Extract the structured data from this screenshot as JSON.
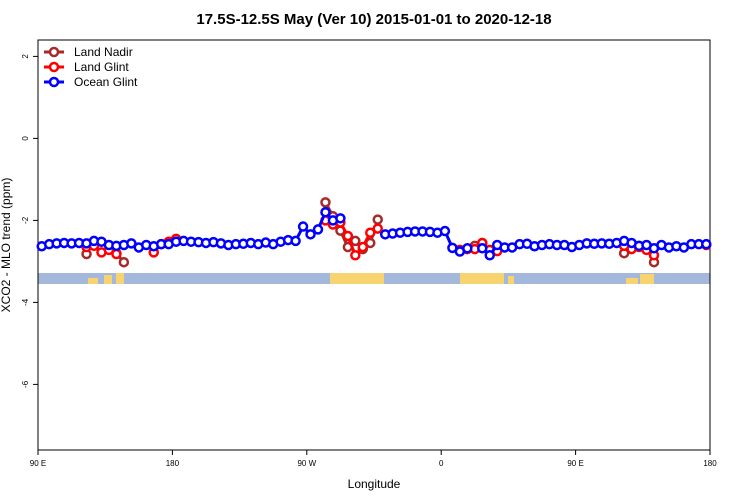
{
  "chart_data": {
    "type": "line",
    "title": "17.5S-12.5S May (Ver 10)   2015-01-01 to 2020-12-18",
    "x_label": "Longitude",
    "y_label": "XCO2 - MLO trend (ppm)",
    "xlim": [
      90,
      540
    ],
    "xticks": [
      {
        "value": 90,
        "label": "90 E"
      },
      180,
      {
        "value": 270,
        "label": "90 W"
      },
      {
        "value": 360,
        "label": "0"
      },
      {
        "value": 450,
        "label": "90 E"
      },
      {
        "value": 540,
        "label": "180"
      }
    ],
    "ylim": [
      -7.6,
      2.4
    ],
    "yticks": [
      -6,
      -4,
      -2,
      0,
      2
    ],
    "legend": "top-left",
    "x": [
      92.5,
      97.5,
      102.5,
      107.5,
      112.5,
      117.5,
      122.5,
      127.5,
      132.5,
      137.5,
      142.5,
      147.5,
      152.5,
      157.5,
      162.5,
      167.5,
      172.5,
      177.5,
      182.5,
      187.5,
      192.5,
      197.5,
      202.5,
      207.5,
      212.5,
      217.5,
      222.5,
      227.5,
      232.5,
      237.5,
      242.5,
      247.5,
      252.5,
      257.5,
      262.5,
      267.5,
      272.5,
      277.5,
      282.5,
      287.5,
      292.5,
      297.5,
      302.5,
      307.5,
      312.5,
      317.5,
      322.5,
      327.5,
      332.5,
      337.5,
      342.5,
      347.5,
      352.5,
      357.5,
      362.5,
      367.5,
      372.5,
      377.5,
      382.5,
      387.5,
      392.5,
      397.5,
      402.5,
      407.5,
      412.5,
      417.5,
      422.5,
      427.5,
      432.5,
      437.5,
      442.5,
      447.5,
      452.5,
      457.5,
      462.5,
      467.5,
      472.5,
      477.5,
      482.5,
      487.5,
      492.5,
      497.5,
      502.5,
      507.5,
      512.5,
      517.5,
      522.5,
      527.5,
      532.5,
      537.5
    ],
    "series": [
      {
        "name": "Land Nadir",
        "color": "#a52a2a",
        "values": [
          null,
          null,
          null,
          null,
          null,
          null,
          -2.82,
          null,
          null,
          null,
          -2.8,
          -3.02,
          null,
          null,
          null,
          null,
          null,
          null,
          null,
          null,
          null,
          null,
          null,
          null,
          null,
          null,
          null,
          null,
          null,
          null,
          null,
          null,
          null,
          null,
          null,
          null,
          null,
          null,
          -1.56,
          -1.9,
          -2.25,
          -2.65,
          -2.5,
          -2.7,
          -2.55,
          -1.98,
          null,
          null,
          null,
          null,
          null,
          null,
          null,
          null,
          null,
          null,
          null,
          null,
          -2.62,
          -2.55,
          null,
          null,
          null,
          null,
          null,
          null,
          null,
          null,
          null,
          null,
          null,
          null,
          null,
          null,
          null,
          null,
          null,
          null,
          -2.8,
          null,
          -2.62,
          null,
          -3.02,
          null,
          null,
          null,
          null,
          null,
          null,
          null
        ]
      },
      {
        "name": "Land Glint",
        "color": "#ff0000",
        "values": [
          null,
          null,
          null,
          null,
          null,
          null,
          -2.65,
          -2.62,
          -2.78,
          -2.72,
          -2.82,
          null,
          null,
          null,
          null,
          -2.78,
          -2.58,
          -2.52,
          -2.45,
          null,
          null,
          null,
          null,
          null,
          null,
          null,
          null,
          null,
          null,
          null,
          null,
          null,
          null,
          null,
          null,
          null,
          null,
          null,
          -2.0,
          -2.1,
          -2.05,
          -2.38,
          -2.85,
          -2.65,
          -2.3,
          -2.2,
          null,
          null,
          null,
          null,
          null,
          null,
          null,
          null,
          null,
          null,
          -2.72,
          -2.7,
          -2.7,
          -2.55,
          -2.72,
          -2.75,
          null,
          null,
          null,
          null,
          null,
          null,
          null,
          null,
          null,
          null,
          null,
          null,
          null,
          null,
          null,
          null,
          -2.62,
          -2.7,
          -2.65,
          -2.72,
          -2.85,
          null,
          null,
          null,
          null,
          null,
          null,
          -2.6
        ]
      },
      {
        "name": "Ocean Glint",
        "color": "#0000ff",
        "values": [
          -2.63,
          -2.58,
          -2.56,
          -2.55,
          -2.56,
          -2.55,
          -2.56,
          -2.5,
          -2.52,
          -2.6,
          -2.62,
          -2.6,
          -2.56,
          -2.66,
          -2.6,
          -2.63,
          -2.58,
          -2.58,
          -2.52,
          -2.5,
          -2.52,
          -2.53,
          -2.55,
          -2.53,
          -2.56,
          -2.6,
          -2.58,
          -2.57,
          -2.55,
          -2.58,
          -2.54,
          -2.58,
          -2.52,
          -2.48,
          -2.5,
          -2.15,
          -2.34,
          -2.22,
          -1.8,
          -2.0,
          -1.95,
          null,
          null,
          null,
          null,
          null,
          -2.34,
          -2.32,
          -2.3,
          -2.28,
          -2.27,
          -2.27,
          -2.28,
          -2.3,
          -2.26,
          -2.67,
          -2.76,
          -2.68,
          null,
          -2.68,
          -2.85,
          -2.6,
          -2.66,
          -2.66,
          -2.58,
          -2.57,
          -2.63,
          -2.6,
          -2.58,
          -2.6,
          -2.6,
          -2.65,
          -2.6,
          -2.56,
          -2.57,
          -2.56,
          -2.57,
          -2.55,
          -2.5,
          -2.55,
          -2.62,
          -2.6,
          -2.68,
          -2.6,
          -2.66,
          -2.63,
          -2.66,
          -2.58,
          -2.58,
          -2.58
        ]
      }
    ]
  }
}
